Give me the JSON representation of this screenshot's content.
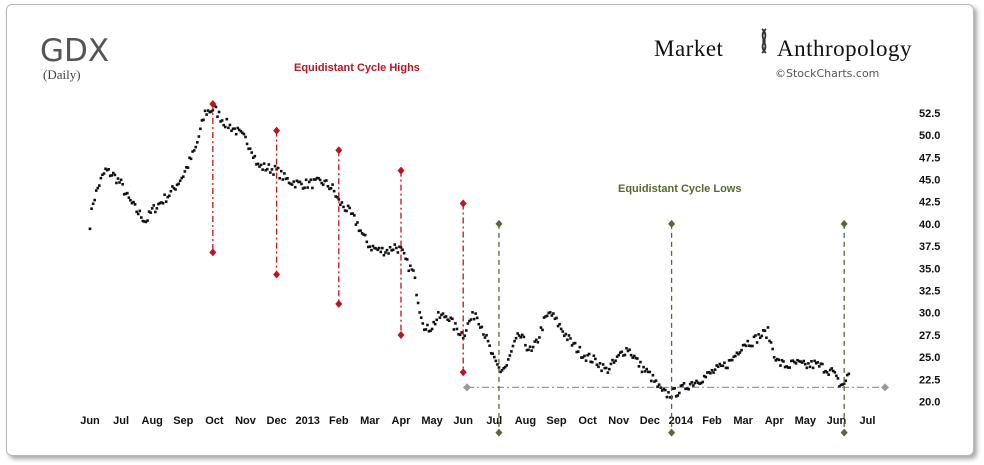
{
  "header": {
    "title": "GDX",
    "subtitle": "(Daily)",
    "brand_left": "Market",
    "brand_right": "Anthropology",
    "credit": "©StockCharts.com"
  },
  "colors": {
    "highs": "#c1121f",
    "lows": "#556b2f",
    "support": "#9a9a9a",
    "price": "#111111"
  },
  "chart_data": {
    "type": "scatter",
    "title": "GDX",
    "subtitle": "(Daily)",
    "xlabel": "",
    "ylabel": "",
    "ylim": [
      19.5,
      53.5
    ],
    "x_axis_labels": [
      "Jun",
      "Jul",
      "Aug",
      "Sep",
      "Oct",
      "Nov",
      "Dec",
      "2013",
      "Feb",
      "Mar",
      "Apr",
      "May",
      "Jun",
      "Jul",
      "Aug",
      "Sep",
      "Oct",
      "Nov",
      "Dec",
      "2014",
      "Feb",
      "Mar",
      "Apr",
      "May",
      "Jun",
      "Jul"
    ],
    "y_ticks": [
      "52.5",
      "50.0",
      "47.5",
      "45.0",
      "42.5",
      "40.0",
      "37.5",
      "35.0",
      "32.5",
      "30.0",
      "27.5",
      "25.0",
      "22.5",
      "20.0"
    ],
    "price_path_anchors": [
      {
        "m": 0.0,
        "v": 40.0
      },
      {
        "m": 0.1,
        "v": 42.5
      },
      {
        "m": 0.3,
        "v": 44.5
      },
      {
        "m": 0.5,
        "v": 46.0
      },
      {
        "m": 0.75,
        "v": 45.5
      },
      {
        "m": 1.0,
        "v": 44.5
      },
      {
        "m": 1.2,
        "v": 43.0
      },
      {
        "m": 1.5,
        "v": 41.5
      },
      {
        "m": 1.8,
        "v": 40.3
      },
      {
        "m": 2.0,
        "v": 41.5
      },
      {
        "m": 2.3,
        "v": 42.5
      },
      {
        "m": 2.6,
        "v": 43.5
      },
      {
        "m": 3.0,
        "v": 45.5
      },
      {
        "m": 3.4,
        "v": 48.5
      },
      {
        "m": 3.7,
        "v": 52.5
      },
      {
        "m": 4.0,
        "v": 53.0
      },
      {
        "m": 4.3,
        "v": 51.5
      },
      {
        "m": 4.7,
        "v": 50.5
      },
      {
        "m": 5.0,
        "v": 49.5
      },
      {
        "m": 5.2,
        "v": 48.5
      },
      {
        "m": 5.4,
        "v": 46.5
      },
      {
        "m": 5.7,
        "v": 46.3
      },
      {
        "m": 6.0,
        "v": 46.0
      },
      {
        "m": 6.3,
        "v": 45.0
      },
      {
        "m": 6.7,
        "v": 44.5
      },
      {
        "m": 7.0,
        "v": 44.5
      },
      {
        "m": 7.5,
        "v": 44.7
      },
      {
        "m": 7.8,
        "v": 44.0
      },
      {
        "m": 8.0,
        "v": 42.5
      },
      {
        "m": 8.3,
        "v": 41.5
      },
      {
        "m": 8.6,
        "v": 40.0
      },
      {
        "m": 8.8,
        "v": 38.5
      },
      {
        "m": 9.0,
        "v": 37.5
      },
      {
        "m": 9.3,
        "v": 37.0
      },
      {
        "m": 9.6,
        "v": 37.0
      },
      {
        "m": 9.8,
        "v": 37.5
      },
      {
        "m": 10.0,
        "v": 37.0
      },
      {
        "m": 10.2,
        "v": 35.5
      },
      {
        "m": 10.4,
        "v": 34.5
      },
      {
        "m": 10.6,
        "v": 30.5
      },
      {
        "m": 10.8,
        "v": 28.0
      },
      {
        "m": 11.0,
        "v": 28.5
      },
      {
        "m": 11.2,
        "v": 29.5
      },
      {
        "m": 11.5,
        "v": 29.7
      },
      {
        "m": 11.7,
        "v": 28.5
      },
      {
        "m": 12.0,
        "v": 27.5
      },
      {
        "m": 12.2,
        "v": 29.0
      },
      {
        "m": 12.4,
        "v": 30.0
      },
      {
        "m": 12.6,
        "v": 28.5
      },
      {
        "m": 12.8,
        "v": 26.5
      },
      {
        "m": 13.0,
        "v": 24.5
      },
      {
        "m": 13.2,
        "v": 23.5
      },
      {
        "m": 13.4,
        "v": 24.0
      },
      {
        "m": 13.6,
        "v": 26.0
      },
      {
        "m": 13.8,
        "v": 27.5
      },
      {
        "m": 14.0,
        "v": 26.5
      },
      {
        "m": 14.2,
        "v": 25.5
      },
      {
        "m": 14.4,
        "v": 27.0
      },
      {
        "m": 14.6,
        "v": 29.0
      },
      {
        "m": 14.8,
        "v": 30.0
      },
      {
        "m": 15.0,
        "v": 29.0
      },
      {
        "m": 15.2,
        "v": 28.0
      },
      {
        "m": 15.5,
        "v": 26.5
      },
      {
        "m": 15.8,
        "v": 25.5
      },
      {
        "m": 16.0,
        "v": 25.0
      },
      {
        "m": 16.3,
        "v": 24.5
      },
      {
        "m": 16.6,
        "v": 23.5
      },
      {
        "m": 16.9,
        "v": 24.5
      },
      {
        "m": 17.1,
        "v": 25.5
      },
      {
        "m": 17.3,
        "v": 26.0
      },
      {
        "m": 17.5,
        "v": 25.0
      },
      {
        "m": 17.7,
        "v": 24.0
      },
      {
        "m": 18.0,
        "v": 23.0
      },
      {
        "m": 18.2,
        "v": 22.0
      },
      {
        "m": 18.4,
        "v": 21.0
      },
      {
        "m": 18.6,
        "v": 20.8
      },
      {
        "m": 18.8,
        "v": 21.0
      },
      {
        "m": 19.0,
        "v": 21.3
      },
      {
        "m": 19.2,
        "v": 21.8
      },
      {
        "m": 19.4,
        "v": 22.2
      },
      {
        "m": 19.6,
        "v": 22.5
      },
      {
        "m": 19.8,
        "v": 22.8
      },
      {
        "m": 20.0,
        "v": 23.3
      },
      {
        "m": 20.3,
        "v": 23.8
      },
      {
        "m": 20.6,
        "v": 24.5
      },
      {
        "m": 20.8,
        "v": 25.5
      },
      {
        "m": 21.0,
        "v": 26.5
      },
      {
        "m": 21.3,
        "v": 26.8
      },
      {
        "m": 21.6,
        "v": 27.5
      },
      {
        "m": 21.8,
        "v": 27.8
      },
      {
        "m": 21.9,
        "v": 26.5
      },
      {
        "m": 22.1,
        "v": 24.5
      },
      {
        "m": 22.4,
        "v": 24.0
      },
      {
        "m": 22.7,
        "v": 24.3
      },
      {
        "m": 23.0,
        "v": 24.0
      },
      {
        "m": 23.3,
        "v": 24.2
      },
      {
        "m": 23.6,
        "v": 23.8
      },
      {
        "m": 23.9,
        "v": 23.3
      },
      {
        "m": 24.0,
        "v": 22.5
      },
      {
        "m": 24.15,
        "v": 21.8
      },
      {
        "m": 24.3,
        "v": 22.3
      },
      {
        "m": 24.45,
        "v": 23.5
      }
    ],
    "support_level": 21.6,
    "cycle_highs": {
      "label": "Equidistant Cycle Highs",
      "lines": [
        {
          "month_pos": 3.95,
          "top": 53.5,
          "bottom": 36.8
        },
        {
          "month_pos": 6.0,
          "top": 50.5,
          "bottom": 34.3
        },
        {
          "month_pos": 8.0,
          "top": 48.3,
          "bottom": 31.0
        },
        {
          "month_pos": 10.0,
          "top": 46.0,
          "bottom": 27.5
        },
        {
          "month_pos": 12.0,
          "top": 42.3,
          "bottom": 23.3
        }
      ]
    },
    "cycle_lows": {
      "label": "Equidistant Cycle Lows",
      "lines": [
        {
          "month_pos": 13.15,
          "top": 40.0,
          "bottom": 16.5
        },
        {
          "month_pos": 18.7,
          "top": 40.0,
          "bottom": 16.5
        },
        {
          "month_pos": 24.25,
          "top": 40.0,
          "bottom": 16.5
        }
      ]
    }
  }
}
